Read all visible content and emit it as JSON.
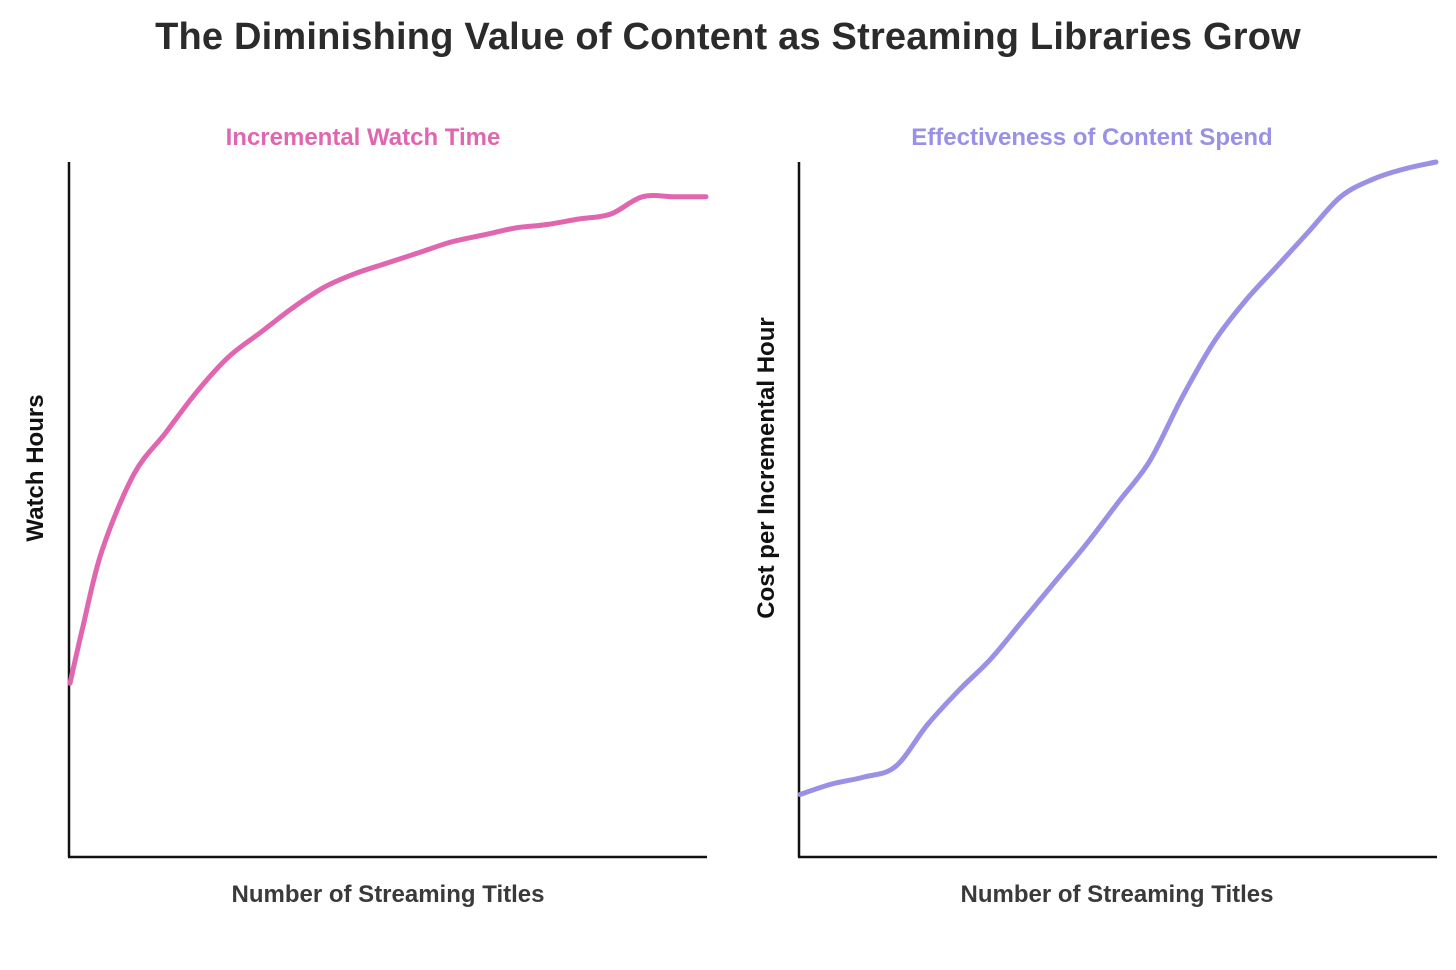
{
  "title": "The Diminishing Value of Content as Streaming Libraries Grow",
  "chart_data": [
    {
      "type": "line",
      "title": "Incremental Watch Time",
      "xlabel": "Number of Streaming Titles",
      "ylabel": "Watch Hours",
      "color": "#e066b0",
      "xlim": [
        0,
        100
      ],
      "ylim": [
        0,
        100
      ],
      "series": [
        {
          "x": [
            0,
            2,
            5,
            10,
            15,
            20,
            25,
            30,
            35,
            40,
            45,
            50,
            55,
            60,
            65,
            70,
            75,
            80,
            85,
            90,
            95,
            100
          ],
          "values": [
            25,
            33,
            44,
            55,
            61,
            67,
            72,
            75.5,
            79,
            82,
            84,
            85.5,
            87,
            88.5,
            89.5,
            90.5,
            91,
            91.8,
            92.5,
            95,
            95,
            95
          ]
        }
      ]
    },
    {
      "type": "line",
      "title": "Effectiveness of Content Spend",
      "xlabel": "Number of Streaming Titles",
      "ylabel": "Cost per Incremental Hour",
      "color": "#9a90e6",
      "xlim": [
        0,
        100
      ],
      "ylim": [
        0,
        100
      ],
      "series": [
        {
          "x": [
            0,
            5,
            10,
            15,
            20,
            25,
            30,
            35,
            40,
            45,
            50,
            55,
            60,
            65,
            70,
            75,
            80,
            85,
            90,
            95,
            100
          ],
          "values": [
            9,
            10.5,
            11.5,
            13,
            19,
            24,
            28.5,
            34,
            39.5,
            45,
            51,
            57,
            66,
            74,
            80,
            85,
            90,
            95,
            97.5,
            99,
            100
          ]
        }
      ]
    }
  ]
}
